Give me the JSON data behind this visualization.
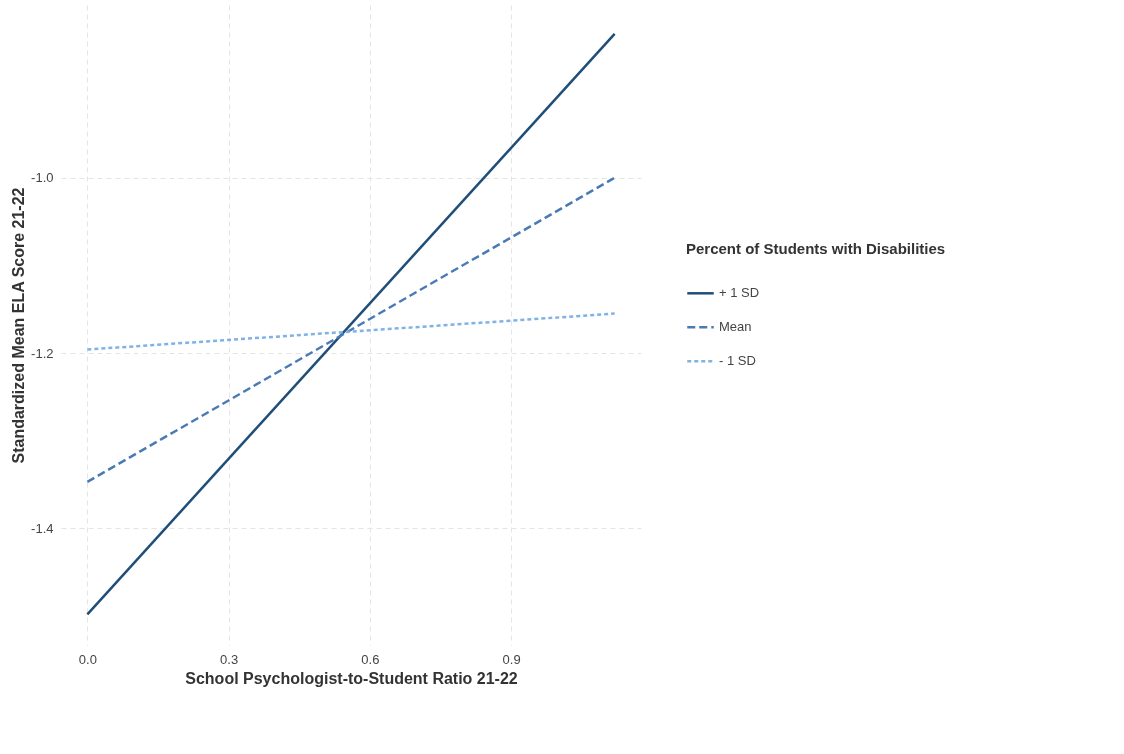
{
  "chart_data": {
    "type": "line",
    "xlabel": "School Psychologist-to-Student Ratio 21-22",
    "ylabel": "Standardized Mean ELA Score 21-22",
    "legend_title": "Percent of Students with Disabilities",
    "x": [
      0,
      1.12
    ],
    "series": [
      {
        "name": "+ 1 SD",
        "color": "#1f4e79",
        "line_style": "solid",
        "values": [
          -1.498,
          -0.836
        ]
      },
      {
        "name": "Mean",
        "color": "#4a7ab5",
        "line_style": "dashed",
        "values": [
          -1.347,
          -1.0
        ]
      },
      {
        "name": "- 1 SD",
        "color": "#7fb2e5",
        "line_style": "dotted",
        "values": [
          -1.196,
          -1.155
        ]
      }
    ],
    "xlim": [
      -0.056,
      1.176
    ],
    "xticks": [
      {
        "value": 0,
        "label": "0.0"
      },
      0.3,
      0.6,
      0.9
    ],
    "ylim": [
      -1.533,
      -0.803
    ],
    "yticks": [
      -1.4,
      {
        "value": -1.2,
        "label": "-1.2"
      },
      {
        "value": -1,
        "label": "-1.0"
      }
    ],
    "grid": true,
    "legend": "right",
    "marker": "none"
  }
}
